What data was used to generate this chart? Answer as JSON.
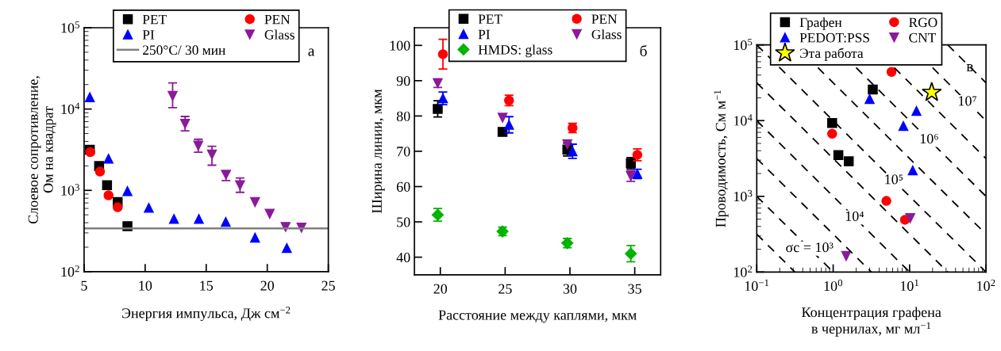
{
  "chart_data": [
    {
      "type": "scatter",
      "xlabel": "Энергия импульса, Дж см$^{−2}$",
      "ylabel": "Слоевое сопротивление,\nОм на квадрат",
      "log": "y",
      "xlim": [
        5,
        25
      ],
      "xticks": [
        5,
        10,
        15,
        20,
        25
      ],
      "ylim": [
        100,
        100000
      ],
      "yticks": [
        {
          "value": 100,
          "label": "10$^{2}$"
        },
        {
          "value": 1000,
          "label": "10$^{3}$"
        },
        {
          "value": 10000,
          "label": "10$^{4}$"
        },
        {
          "value": 100000,
          "label": "10$^{5}$"
        }
      ],
      "legend": "top",
      "annotations": [
        "а"
      ],
      "series": [
        {
          "name": "PET",
          "color": "#000000",
          "marker": "square",
          "x": [
            5.47,
            6.23,
            6.88,
            7.75,
            8.55
          ],
          "values": [
            3160,
            1990,
            1160,
            717,
            363
          ]
        },
        {
          "name": "PEN",
          "color": "#ff0000",
          "marker": "circle",
          "x": [
            5.5,
            6.3,
            7.0,
            7.75
          ],
          "values": [
            2950,
            1700,
            870,
            620
          ]
        },
        {
          "name": "PI",
          "color": "#0000ff",
          "marker": "triangle",
          "x": [
            5.47,
            7.0,
            8.55,
            10.3,
            12.36,
            14.4,
            16.6,
            19.0,
            21.6
          ],
          "values": [
            14000,
            2450,
            980,
            610,
            445,
            445,
            410,
            262,
            195
          ]
        },
        {
          "name": "Glass",
          "color": "#8b1a9b",
          "marker": "triangle_down",
          "x": [
            12.25,
            13.27,
            14.35,
            15.47,
            16.62,
            17.77,
            19.0,
            20.2,
            21.5,
            22.8
          ],
          "values": [
            14500,
            6600,
            3550,
            2760,
            1560,
            1160,
            717,
            515,
            355,
            348
          ],
          "errors": [
            [
              10400,
              21000
            ],
            [
              5400,
              8100
            ],
            [
              2950,
              4250
            ],
            [
              2040,
              3480
            ],
            [
              1320,
              1700
            ],
            [
              945,
              1420
            ],
            null,
            null,
            null,
            null
          ]
        }
      ],
      "ref_lines": [
        {
          "axis": "y",
          "value": 340,
          "label": "250°C/ 30 мин",
          "color": "#808080",
          "line_style": "solid"
        }
      ]
    },
    {
      "type": "scatter",
      "xlabel": "Расстояние между каплями, мкм",
      "ylabel": "Ширина линии, мкм",
      "xlim": [
        18,
        37
      ],
      "xticks": [
        20,
        25,
        30,
        35
      ],
      "ylim": [
        35,
        105
      ],
      "yticks": [
        40,
        50,
        60,
        70,
        80,
        90,
        100
      ],
      "legend": "top",
      "annotations": [
        "б"
      ],
      "series": [
        {
          "name": "PET",
          "color": "#000000",
          "marker": "square",
          "x": [
            19.8,
            24.8,
            29.8,
            34.7
          ],
          "values": [
            82,
            75.5,
            70.5,
            66.6
          ],
          "errors": [
            2.3,
            null,
            1.8,
            1.6
          ]
        },
        {
          "name": "PEN",
          "color": "#ff0000",
          "marker": "circle",
          "x": [
            20.2,
            25.3,
            30.2,
            35.2
          ],
          "values": [
            97.5,
            84.4,
            76.6,
            69
          ],
          "errors": [
            4.2,
            1.5,
            1.3,
            1.7
          ]
        },
        {
          "name": "PI",
          "color": "#0000ff",
          "marker": "triangle",
          "x": [
            20.2,
            25.3,
            30.2,
            35.2
          ],
          "values": [
            85,
            77.5,
            70,
            63.6
          ],
          "errors": [
            1.8,
            2.3,
            2,
            1.3
          ]
        },
        {
          "name": "Glass",
          "color": "#8b1a9b",
          "marker": "triangle_down",
          "x": [
            19.8,
            24.8,
            29.8,
            34.7
          ],
          "values": [
            89.3,
            79.5,
            72,
            63
          ],
          "errors": [
            1.2,
            null,
            null,
            1.5
          ]
        },
        {
          "name": "HMDS: glass",
          "color": "#00b400",
          "marker": "diamond",
          "x": [
            19.8,
            24.8,
            29.8,
            34.7
          ],
          "values": [
            52,
            47.3,
            44,
            41
          ],
          "errors": [
            1.8,
            1.2,
            1.3,
            2.3
          ]
        }
      ]
    },
    {
      "type": "scatter",
      "xlabel": "Концентрация графена\nв чернилах, мг мл$^{−1}$",
      "ylabel": "Проводимость, См м$^{−1}$",
      "log": "xy",
      "xlim": [
        0.1,
        100
      ],
      "xticks": [
        {
          "value": 0.1,
          "label": "10$^{−1}$"
        },
        {
          "value": 1,
          "label": "10$^{0}$"
        },
        {
          "value": 10,
          "label": "10$^{1}$"
        },
        {
          "value": 100,
          "label": "10$^{2}$"
        }
      ],
      "ylim": [
        100,
        100000
      ],
      "yticks": [
        {
          "value": 100,
          "label": "10$^{2}$"
        },
        {
          "value": 1000,
          "label": "10$^{3}$"
        },
        {
          "value": 10000,
          "label": "10$^{4}$"
        },
        {
          "value": 100000,
          "label": "10$^{5}$"
        }
      ],
      "legend": "top left",
      "annotations": [
        "в",
        {
          "text": "σc = 10³",
          "x": 0.49,
          "y": 204
        },
        {
          "text": "10⁴",
          "x": 1.9,
          "y": 526
        },
        {
          "text": "10⁵",
          "x": 6.2,
          "y": 1613
        },
        {
          "text": "10⁶",
          "x": 18,
          "y": 5556
        },
        {
          "text": "10⁷",
          "x": 57,
          "y": 17540
        }
      ],
      "series": [
        {
          "name": "Графен",
          "color": "#000000",
          "marker": "square",
          "x": [
            0.97,
            1.17,
            1.6,
            3.3
          ],
          "values": [
            9300,
            3500,
            2900,
            25700
          ]
        },
        {
          "name": "RGO",
          "color": "#ff0000",
          "marker": "circle",
          "x": [
            0.97,
            5.8,
            4.97,
            8.7
          ],
          "values": [
            6700,
            44000,
            870,
            490
          ]
        },
        {
          "name": "PEDOT:PSS",
          "color": "#0000ff",
          "marker": "triangle",
          "x": [
            3.0,
            8.3,
            12.3,
            11
          ],
          "values": [
            19300,
            8500,
            13400,
            2200
          ]
        },
        {
          "name": "CNT",
          "color": "#8b1a9b",
          "marker": "triangle_down",
          "x": [
            10.2,
            1.48
          ],
          "values": [
            515,
            163
          ]
        },
        {
          "name": "Эта работа",
          "color": "#ffff00",
          "marker": "star",
          "x": [
            19.5
          ],
          "values": [
            23600
          ]
        },
        {
          "type": "line",
          "color": "#000000",
          "line_style": "dashed",
          "marker": "none",
          "x": [
            0.1,
            0.316
          ],
          "values": [
            316,
            100
          ]
        },
        {
          "type": "line",
          "color": "#000000",
          "line_style": "dashed",
          "marker": "none",
          "x": [
            0.1,
            1
          ],
          "values": [
            1000,
            100
          ]
        },
        {
          "type": "line",
          "color": "#000000",
          "line_style": "dashed",
          "marker": "none",
          "x": [
            0.1,
            3.16
          ],
          "values": [
            3160,
            100
          ]
        },
        {
          "type": "line",
          "color": "#000000",
          "line_style": "dashed",
          "marker": "none",
          "x": [
            0.1,
            10
          ],
          "values": [
            10000,
            100
          ]
        },
        {
          "type": "line",
          "color": "#000000",
          "line_style": "dashed",
          "marker": "none",
          "x": [
            0.1,
            31.6
          ],
          "values": [
            31600,
            100
          ]
        },
        {
          "type": "line",
          "color": "#000000",
          "line_style": "dashed",
          "marker": "none",
          "x": [
            0.1,
            100
          ],
          "values": [
            100000,
            100
          ]
        },
        {
          "type": "line",
          "color": "#000000",
          "line_style": "dashed",
          "marker": "none",
          "x": [
            0.632,
            100
          ],
          "values": [
            50000,
            316
          ]
        },
        {
          "type": "line",
          "color": "#000000",
          "line_style": "dashed",
          "marker": "none",
          "x": [
            2,
            100
          ],
          "values": [
            50000,
            1000
          ]
        },
        {
          "type": "line",
          "color": "#000000",
          "line_style": "dashed",
          "marker": "none",
          "x": [
            6.32,
            100
          ],
          "values": [
            50000,
            3160
          ]
        },
        {
          "type": "line",
          "color": "#000000",
          "line_style": "dashed",
          "marker": "none",
          "x": [
            20,
            100
          ],
          "values": [
            50000,
            10000
          ]
        },
        {
          "type": "line",
          "color": "#000000",
          "line_style": "dashed",
          "marker": "none",
          "x": [
            31.6,
            100
          ],
          "values": [
            100000,
            31600
          ]
        }
      ]
    }
  ]
}
